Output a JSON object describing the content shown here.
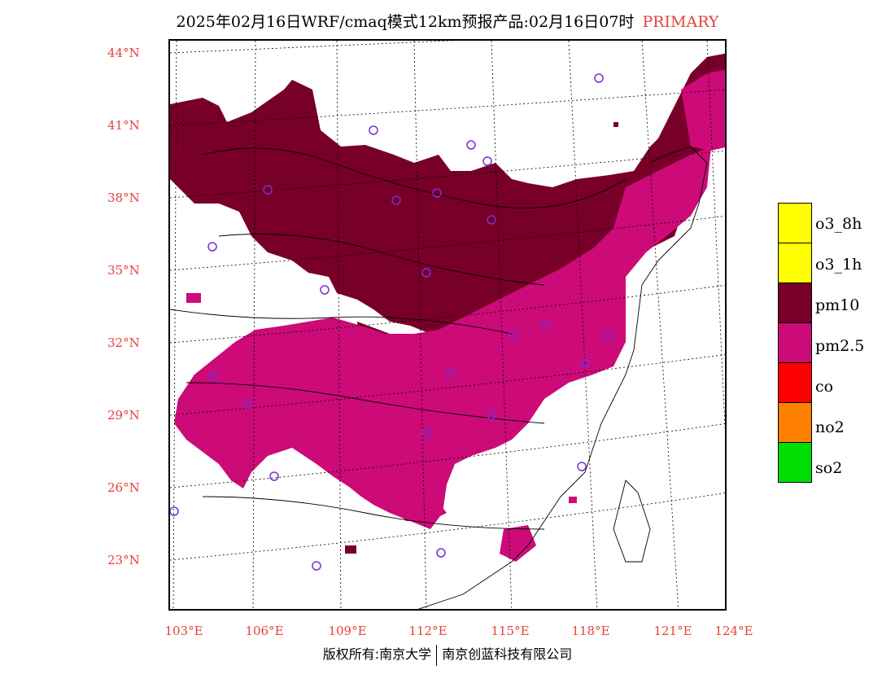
{
  "title": {
    "main": "2025年02月16日WRF/cmaq模式12km预报产品:02月16日07时",
    "tag": "PRIMARY"
  },
  "map": {
    "lat_labels": [
      "44°N",
      "41°N",
      "38°N",
      "35°N",
      "32°N",
      "29°N",
      "26°N",
      "23°N"
    ],
    "lon_labels": [
      "103°E",
      "106°E",
      "109°E",
      "112°E",
      "115°E",
      "118°E",
      "121°E",
      "124°E"
    ]
  },
  "legend": {
    "items": [
      {
        "label": "o3_8h",
        "color": "#ffff00"
      },
      {
        "label": "o3_1h",
        "color": "#ffff00"
      },
      {
        "label": "pm10",
        "color": "#780028"
      },
      {
        "label": "pm2.5",
        "color": "#cc0a78"
      },
      {
        "label": "co",
        "color": "#ff0000"
      },
      {
        "label": "no2",
        "color": "#ff7f00"
      },
      {
        "label": "so2",
        "color": "#00dd00"
      }
    ]
  },
  "footer": {
    "left": "版权所有:南京大学",
    "right": "南京创蓝科技有限公司"
  },
  "colors": {
    "pm10": "#780028",
    "pm25": "#cc0a78",
    "label_red": "#e8403a",
    "station": "#7a2cd8"
  }
}
